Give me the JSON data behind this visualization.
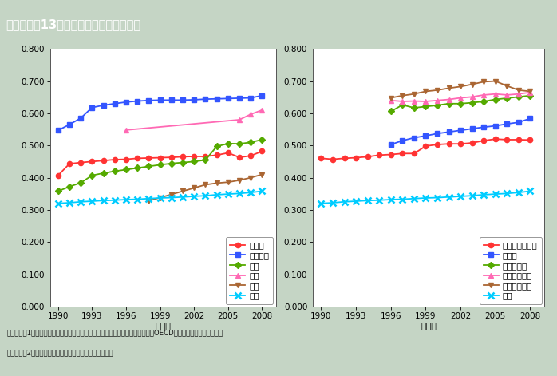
{
  "title": "第１－特－13図　賃金総額男女比の推移",
  "title_bg_color": "#8B7355",
  "bg_color": "#C5D5C5",
  "plot_bg_color": "#FFFFFF",
  "footnote1": "（備考）　1．総務省「労働力調査」，厚生労働省「賃金構造基本統計調査」，OECD資料，米国資料より作成。",
  "footnote2": "　　　　　2．データの出典，計算方法は付注１を参照。",
  "xlabel": "（年）",
  "ylim": [
    0.0,
    0.8
  ],
  "yticks": [
    0.0,
    0.1,
    0.2,
    0.3,
    0.4,
    0.5,
    0.6,
    0.7,
    0.8
  ],
  "xticks": [
    1990,
    1993,
    1996,
    1999,
    2002,
    2005,
    2008
  ],
  "left_chart": {
    "years": [
      1990,
      1991,
      1992,
      1993,
      1994,
      1995,
      1996,
      1997,
      1998,
      1999,
      2000,
      2001,
      2002,
      2003,
      2004,
      2005,
      2006,
      2007,
      2008
    ],
    "series": [
      {
        "name": "ドイツ",
        "color": "#FF3333",
        "marker": "o",
        "data": [
          0.407,
          0.443,
          0.447,
          0.45,
          0.453,
          0.456,
          0.457,
          0.46,
          0.461,
          0.462,
          0.463,
          0.465,
          0.466,
          0.466,
          0.47,
          0.477,
          0.463,
          0.468,
          0.482
        ]
      },
      {
        "name": "フランス",
        "color": "#3355FF",
        "marker": "s",
        "data": [
          0.547,
          0.565,
          0.585,
          0.618,
          0.625,
          0.63,
          0.635,
          0.638,
          0.64,
          0.641,
          0.641,
          0.641,
          0.642,
          0.644,
          0.645,
          0.646,
          0.647,
          0.648,
          0.655
        ]
      },
      {
        "name": "英国",
        "color": "#55AA00",
        "marker": "D",
        "data": [
          0.358,
          0.372,
          0.384,
          0.407,
          0.414,
          0.42,
          0.425,
          0.43,
          0.435,
          0.44,
          0.444,
          0.447,
          0.45,
          0.455,
          0.497,
          0.506,
          0.505,
          0.51,
          0.518
        ]
      },
      {
        "name": "米国",
        "color": "#FF69B4",
        "marker": "^",
        "data": [
          null,
          null,
          null,
          null,
          null,
          null,
          0.548,
          null,
          null,
          null,
          null,
          null,
          null,
          null,
          null,
          null,
          0.58,
          0.597,
          0.61
        ]
      },
      {
        "name": "韓国",
        "color": "#AA6633",
        "marker": "v",
        "data": [
          null,
          null,
          null,
          null,
          null,
          null,
          null,
          null,
          0.328,
          0.338,
          0.348,
          0.358,
          0.368,
          0.378,
          0.383,
          0.386,
          0.392,
          0.4,
          0.41
        ]
      },
      {
        "name": "日本",
        "color": "#00CCFF",
        "marker": "x",
        "data": [
          0.32,
          0.322,
          0.325,
          0.327,
          0.329,
          0.33,
          0.332,
          0.333,
          0.335,
          0.337,
          0.338,
          0.34,
          0.342,
          0.344,
          0.347,
          0.349,
          0.351,
          0.354,
          0.358
        ]
      }
    ]
  },
  "right_chart": {
    "years": [
      1990,
      1991,
      1992,
      1993,
      1994,
      1995,
      1996,
      1997,
      1998,
      1999,
      2000,
      2001,
      2002,
      2003,
      2004,
      2005,
      2006,
      2007,
      2008
    ],
    "series": [
      {
        "name": "オーストラリア",
        "color": "#FF3333",
        "marker": "o",
        "data": [
          0.46,
          0.457,
          0.46,
          0.462,
          0.465,
          0.47,
          0.472,
          0.475,
          0.475,
          0.498,
          0.503,
          0.505,
          0.505,
          0.508,
          0.515,
          0.52,
          0.518,
          0.518,
          0.517
        ]
      },
      {
        "name": "カナダ",
        "color": "#3355FF",
        "marker": "s",
        "data": [
          null,
          null,
          null,
          null,
          null,
          null,
          0.503,
          0.515,
          0.524,
          0.53,
          0.537,
          0.542,
          0.547,
          0.552,
          0.557,
          0.561,
          0.567,
          0.572,
          0.584
        ]
      },
      {
        "name": "デンマーク",
        "color": "#55AA00",
        "marker": "D",
        "data": [
          null,
          null,
          null,
          null,
          null,
          null,
          0.606,
          0.626,
          0.617,
          0.621,
          0.625,
          0.63,
          0.63,
          0.633,
          0.637,
          0.643,
          0.647,
          0.651,
          0.655
        ]
      },
      {
        "name": "フィンランド",
        "color": "#FF69B4",
        "marker": "^",
        "data": [
          null,
          null,
          null,
          null,
          null,
          null,
          0.64,
          0.637,
          0.638,
          0.637,
          0.64,
          0.643,
          0.648,
          0.651,
          0.657,
          0.66,
          0.657,
          0.66,
          0.665
        ]
      },
      {
        "name": "スウェーデン",
        "color": "#AA6633",
        "marker": "v",
        "data": [
          null,
          null,
          null,
          null,
          null,
          null,
          0.648,
          0.655,
          0.66,
          0.668,
          0.672,
          0.678,
          0.683,
          0.69,
          0.698,
          0.7,
          0.685,
          0.672,
          0.668
        ]
      },
      {
        "name": "日本",
        "color": "#00CCFF",
        "marker": "x",
        "data": [
          0.32,
          0.322,
          0.325,
          0.327,
          0.329,
          0.33,
          0.332,
          0.333,
          0.335,
          0.337,
          0.338,
          0.34,
          0.342,
          0.344,
          0.347,
          0.349,
          0.351,
          0.354,
          0.358
        ]
      }
    ]
  }
}
